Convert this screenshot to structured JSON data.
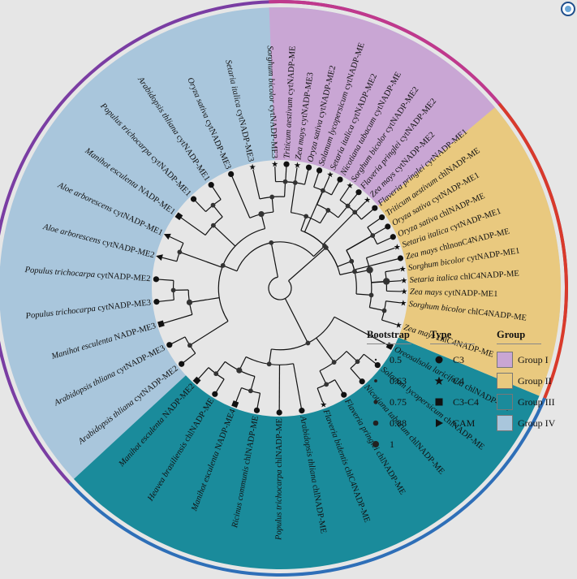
{
  "legend": {
    "bootstrap": {
      "title": "Bootstrap",
      "items": [
        "0.5",
        "0.63",
        "0.75",
        "0.88",
        "1"
      ]
    },
    "type": {
      "title": "Type",
      "items": [
        {
          "label": "C3",
          "icon": "circle"
        },
        {
          "label": "C4",
          "icon": "star"
        },
        {
          "label": "C3-C4",
          "icon": "square"
        },
        {
          "label": "CAM",
          "icon": "triangle"
        }
      ]
    },
    "group": {
      "title": "Group",
      "items": [
        {
          "label": "Group I",
          "color": "#c9a6d4"
        },
        {
          "label": "Group II",
          "color": "#e9c97f"
        },
        {
          "label": "Group III",
          "color": "#1a8b9b"
        },
        {
          "label": "Group IV",
          "color": "#a9c6dc"
        }
      ]
    }
  },
  "outer_ring_colors": {
    "Group I": "#c0398c",
    "Group II": "#d93a2b",
    "Group III": "#2e6fb8",
    "Group IV": "#7a3da3"
  },
  "leaves": [
    {
      "sp": "Zea mays",
      "gene": "cytNADP-ME1",
      "group": "Group IV",
      "type": "C4"
    },
    {
      "sp": "Sorghum bicolor",
      "gene": "cytNADP-ME1",
      "group": "Group IV",
      "type": "C4"
    },
    {
      "sp": "Setaria italica",
      "gene": "cytNADP-ME1",
      "group": "Group IV",
      "type": "C4"
    },
    {
      "sp": "Oryza sativa",
      "gene": "cytNADP-ME1",
      "group": "Group IV",
      "type": "C3"
    },
    {
      "sp": "Flaveria pringlei",
      "gene": "cytNADP-ME1",
      "group": "Group IV",
      "type": "C3"
    },
    {
      "sp": "Flaveria pringlei",
      "gene": "cytNADP-ME2",
      "group": "Group IV",
      "type": "C3"
    },
    {
      "sp": "Nicotiana tabacum",
      "gene": "cytNADP-ME",
      "group": "Group IV",
      "type": "C3"
    },
    {
      "sp": "Solanum lycopersicum",
      "gene": "cytNADP-ME",
      "group": "Group IV",
      "type": "C3"
    },
    {
      "sp": "Zea mays",
      "gene": "cytNADP-ME3",
      "group": "Group IV",
      "type": "C4"
    },
    {
      "sp": "Sorghum bicolor",
      "gene": "cytNADP-ME3",
      "group": "Group IV",
      "type": "C4"
    },
    {
      "sp": "Setaria italica",
      "gene": "cytNADP-ME3",
      "group": "Group IV",
      "type": "C4"
    },
    {
      "sp": "Oryza sativa",
      "gene": "cytNADP-ME3",
      "group": "Group IV",
      "type": "C3"
    },
    {
      "sp": "Arabidopsis thliana",
      "gene": "cytNADP-ME1",
      "group": "Group IV",
      "type": "C3"
    },
    {
      "sp": "Populus trichocarpa",
      "gene": "cytNADP-ME1",
      "group": "Group IV",
      "type": "C3"
    },
    {
      "sp": "Manihot esculenta",
      "gene": "NADP-ME1",
      "group": "Group IV",
      "type": "C3-C4"
    },
    {
      "sp": "Aloe arborescens",
      "gene": "cytNADP-ME1",
      "group": "Group IV",
      "type": "CAM"
    },
    {
      "sp": "Aloe arborescens",
      "gene": "cytNADP-ME2",
      "group": "Group IV",
      "type": "CAM"
    },
    {
      "sp": "Populus trichocarpa",
      "gene": "cytNADP-ME2",
      "group": "Group IV",
      "type": "C3"
    },
    {
      "sp": "Populus trichocarpa",
      "gene": "cytNADP-ME3",
      "group": "Group IV",
      "type": "C3"
    },
    {
      "sp": "Manihot esculenta",
      "gene": "NADP-ME3",
      "group": "Group IV",
      "type": "C3-C4"
    },
    {
      "sp": "Arabidopsis thliana",
      "gene": "cytNADP-ME3",
      "group": "Group IV",
      "type": "C3"
    },
    {
      "sp": "Arabidopsis thliana",
      "gene": "cytNADP-ME2",
      "group": "Group IV",
      "type": "C3"
    },
    {
      "sp": "Manihot esculenta",
      "gene": "NADP-ME2",
      "group": "Group III",
      "type": "C3-C4"
    },
    {
      "sp": "Heavea brasiliensis",
      "gene": "chlNADP-ME",
      "group": "Group III",
      "type": "C3"
    },
    {
      "sp": "Manihot esculenta",
      "gene": "NADP-ME4",
      "group": "Group III",
      "type": "C3-C4"
    },
    {
      "sp": "Ricinus communis",
      "gene": "chlNADP-ME",
      "group": "Group III",
      "type": "C3"
    },
    {
      "sp": "Populus trichocarpa",
      "gene": "chlNADP-ME",
      "group": "Group III",
      "type": "C3"
    },
    {
      "sp": "Arabidopsis thliana",
      "gene": "chlNADP-ME",
      "group": "Group III",
      "type": "C3"
    },
    {
      "sp": "Flaveria bidentis",
      "gene": "chlC4NADP-ME",
      "group": "Group III",
      "type": "C4"
    },
    {
      "sp": "Flaveria pringlei",
      "gene": "chlNADP-ME",
      "group": "Group III",
      "type": "C3"
    },
    {
      "sp": "Nicotiana tabacum",
      "gene": "chlNADP-ME",
      "group": "Group III",
      "type": "C3"
    },
    {
      "sp": "Solanum lycopersicum",
      "gene": "chlNADP-ME",
      "group": "Group III",
      "type": "C3"
    },
    {
      "sp": "Oreosalsola laricifolia",
      "gene": "chlNADP-ME",
      "group": "Group III",
      "type": "C3-C4"
    },
    {
      "sp": "Zea mays",
      "gene": "chlC4NADP-ME",
      "group": "Group II",
      "type": "C4"
    },
    {
      "sp": "Sorghum bicolor",
      "gene": "chlC4NADP-ME",
      "group": "Group II",
      "type": "C4"
    },
    {
      "sp": "Setaria italica",
      "gene": "chlC4NADP-ME",
      "group": "Group II",
      "type": "C4"
    },
    {
      "sp": "Zea mays",
      "gene": "chlnonC4NADP-ME",
      "group": "Group II",
      "type": "C3"
    },
    {
      "sp": "Oryza sativa",
      "gene": "chlNADP-ME",
      "group": "Group II",
      "type": "C3"
    },
    {
      "sp": "Triticum aestivum",
      "gene": "chlNADP-ME",
      "group": "Group II",
      "type": "C3"
    },
    {
      "sp": "Zea mays",
      "gene": "cytNADP-ME2",
      "group": "Group I",
      "type": "C4"
    },
    {
      "sp": "Sorghum bicolor",
      "gene": "cytNADP-ME2",
      "group": "Group I",
      "type": "C4"
    },
    {
      "sp": "Setaria italica",
      "gene": "cytNADP-ME2",
      "group": "Group I",
      "type": "C4"
    },
    {
      "sp": "Oryza sativa",
      "gene": "cytNADP-ME2",
      "group": "Group I",
      "type": "C3"
    },
    {
      "sp": "Triticum aestivum",
      "gene": "cytNADP-ME",
      "group": "Group I",
      "type": "C3"
    }
  ]
}
